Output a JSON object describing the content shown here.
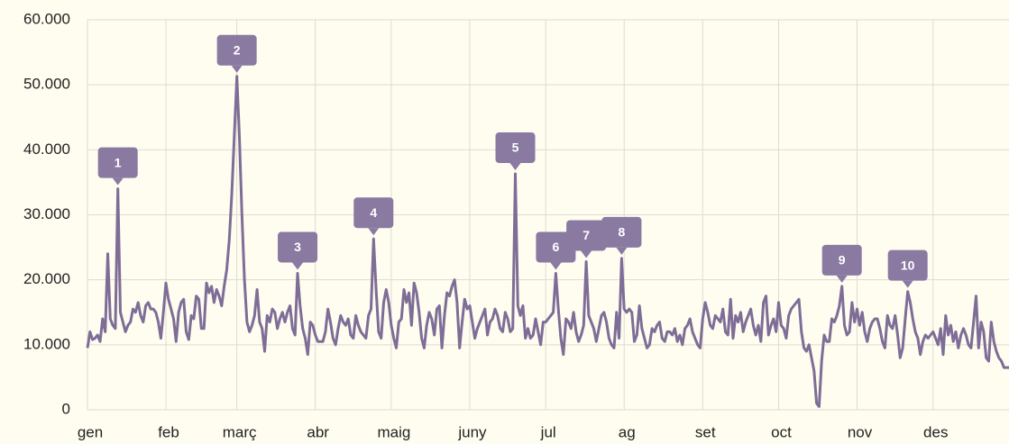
{
  "chart_data": {
    "type": "line",
    "color": "#7e6d96",
    "grid": true,
    "xlim": [
      0,
      364
    ],
    "xticks": [
      {
        "value": 0,
        "label": "gen"
      },
      {
        "value": 31,
        "label": "feb"
      },
      {
        "value": 59,
        "label": "març"
      },
      {
        "value": 90,
        "label": "abr"
      },
      {
        "value": 120,
        "label": "maig"
      },
      {
        "value": 151,
        "label": "juny"
      },
      {
        "value": 181,
        "label": "jul"
      },
      {
        "value": 212,
        "label": "ag"
      },
      {
        "value": 243,
        "label": "set"
      },
      {
        "value": 273,
        "label": "oct"
      },
      {
        "value": 304,
        "label": "nov"
      },
      {
        "value": 334,
        "label": "des"
      }
    ],
    "ylim": [
      0,
      60000
    ],
    "yticks": [
      0,
      {
        "value": 10000,
        "label": "10.000"
      },
      {
        "value": 20000,
        "label": "20.000"
      },
      {
        "value": 30000,
        "label": "30.000"
      },
      {
        "value": 40000,
        "label": "40.000"
      },
      {
        "value": 50000,
        "label": "50.000"
      },
      {
        "value": 60000,
        "label": "60.000"
      }
    ],
    "values": [
      9500,
      12000,
      10800,
      11000,
      11500,
      10500,
      14000,
      12000,
      24000,
      14000,
      13000,
      12500,
      34000,
      15000,
      13500,
      12000,
      13000,
      13500,
      15500,
      15000,
      16500,
      14500,
      13500,
      16000,
      16500,
      15500,
      15500,
      15000,
      13500,
      11000,
      15000,
      19500,
      17000,
      15500,
      14000,
      10500,
      15000,
      16500,
      17000,
      12000,
      10800,
      14500,
      14000,
      17500,
      17000,
      12500,
      12500,
      19500,
      18000,
      19000,
      16500,
      18500,
      17500,
      16000,
      19000,
      21500,
      26000,
      33000,
      42000,
      51300,
      42000,
      30000,
      20000,
      13500,
      12000,
      13000,
      14500,
      18500,
      13500,
      12500,
      9000,
      14500,
      13500,
      15500,
      15000,
      12500,
      14000,
      15000,
      13500,
      15000,
      16000,
      12500,
      11500,
      21000,
      16000,
      12500,
      11000,
      8500,
      13500,
      13000,
      11500,
      10500,
      10500,
      10500,
      12000,
      15500,
      13500,
      11000,
      10000,
      12500,
      14500,
      13500,
      13000,
      14000,
      11500,
      11000,
      14500,
      13000,
      12000,
      11500,
      11000,
      14500,
      15500,
      26300,
      18500,
      12000,
      11000,
      16500,
      18500,
      16500,
      13000,
      11000,
      9500,
      13500,
      14000,
      18500,
      16500,
      18000,
      13000,
      19500,
      18000,
      15000,
      11000,
      9500,
      13000,
      15000,
      14000,
      11500,
      15500,
      16000,
      9500,
      14500,
      18000,
      17500,
      19000,
      20000,
      16500,
      9500,
      13500,
      17000,
      15500,
      16000,
      13500,
      11000,
      12500,
      13500,
      14500,
      15500,
      11500,
      13500,
      14000,
      15500,
      14500,
      12500,
      12000,
      15000,
      14000,
      12000,
      12500,
      36300,
      16000,
      14500,
      16000,
      11000,
      12500,
      11000,
      11500,
      14000,
      12000,
      10000,
      13500,
      13500,
      14000,
      14500,
      15000,
      21000,
      15500,
      11000,
      8500,
      14000,
      13500,
      12500,
      15000,
      12000,
      10500,
      11500,
      13000,
      22800,
      14500,
      13500,
      12500,
      10500,
      12500,
      14500,
      15000,
      13500,
      11000,
      10000,
      9500,
      15000,
      11000,
      23300,
      15500,
      15000,
      15500,
      15000,
      10500,
      11500,
      16000,
      12500,
      11000,
      9500,
      10000,
      12500,
      12000,
      13000,
      13500,
      11000,
      10500,
      12000,
      12000,
      11500,
      12500,
      10500,
      11500,
      10000,
      12500,
      13000,
      14000,
      12000,
      11000,
      10000,
      9500,
      14000,
      16500,
      15000,
      13000,
      12500,
      14500,
      14000,
      13500,
      15500,
      12000,
      11500,
      17000,
      11000,
      14500,
      13500,
      15000,
      12000,
      13500,
      14500,
      15500,
      13000,
      11500,
      13000,
      10500,
      16500,
      17500,
      11500,
      13000,
      14000,
      12000,
      16500,
      13000,
      12500,
      11000,
      14500,
      15500,
      16000,
      16500,
      17000,
      12000,
      9500,
      9000,
      10000,
      8000,
      6000,
      1000,
      500,
      7500,
      11500,
      10500,
      10500,
      14000,
      13500,
      14500,
      16000,
      19000,
      13000,
      11500,
      12000,
      16500,
      13500,
      15500,
      13000,
      15000,
      12000,
      10500,
      12500,
      13500,
      14000,
      14000,
      12500,
      10500,
      9500,
      14500,
      13000,
      12500,
      14500,
      11500,
      8000,
      9500,
      14000,
      18200,
      16500,
      14000,
      12000,
      11000,
      8500,
      10500,
      11500,
      11000,
      11500,
      12000,
      11000,
      10000,
      12500,
      8500,
      14500,
      11500,
      13000,
      10500,
      12000,
      9500,
      11500,
      12500,
      11500,
      10000,
      9500,
      13500,
      17500,
      9500,
      13500,
      12000,
      8000,
      7500,
      13500,
      10500,
      9000,
      8000,
      7500,
      6500,
      6500,
      6500
    ],
    "annotations": [
      {
        "text": "1",
        "x": 12
      },
      {
        "text": "2",
        "x": 59
      },
      {
        "text": "3",
        "x": 83
      },
      {
        "text": "4",
        "x": 113
      },
      {
        "text": "5",
        "x": 169
      },
      {
        "text": "6",
        "x": 185
      },
      {
        "text": "7",
        "x": 197
      },
      {
        "text": "8",
        "x": 211
      },
      {
        "text": "9",
        "x": 298
      },
      {
        "text": "10",
        "x": 324
      }
    ]
  }
}
